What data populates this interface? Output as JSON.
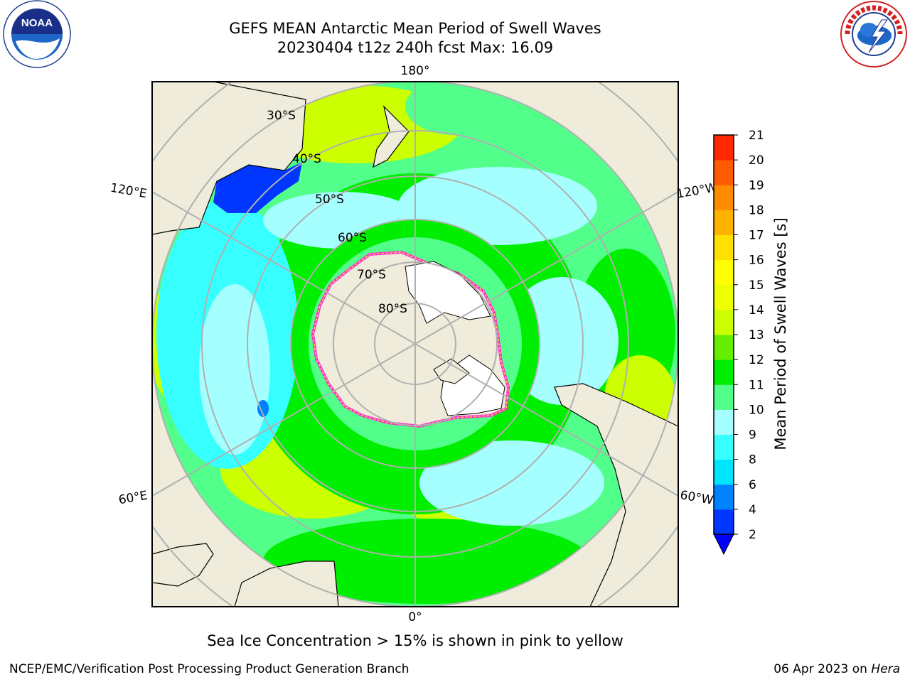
{
  "header": {
    "title_line1": "GEFS MEAN Antarctic Mean Period of Swell Waves",
    "title_line2": "20230404 t12z 240h fcst   Max: 16.09"
  },
  "logos": {
    "left": "NOAA",
    "right": "NATIONAL WEATHER SERVICE"
  },
  "chart_data": {
    "type": "heatmap",
    "projection": "south polar stereographic",
    "variable_label": "Mean Period of Swell Waves [s]",
    "colorbar": {
      "ticks": [
        2,
        4,
        6,
        8,
        9,
        10,
        11,
        12,
        13,
        14,
        15,
        16,
        17,
        18,
        19,
        20,
        21
      ],
      "colors": [
        "#0036ff",
        "#0082ff",
        "#00e5ff",
        "#38ffff",
        "#a6ffff",
        "#52ff8a",
        "#00ee00",
        "#66ee00",
        "#ccff00",
        "#eeff00",
        "#ffff00",
        "#ffe000",
        "#ffb300",
        "#ff8c00",
        "#ff5a00",
        "#ff2800"
      ],
      "extend": "min",
      "extend_color": "#0000ff"
    },
    "max_value": 16.09,
    "longitude_labels": [
      "180°",
      "120°E",
      "120°W",
      "60°E",
      "60°W",
      "0°"
    ],
    "latitude_labels": [
      "30°S",
      "40°S",
      "50°S",
      "60°S",
      "70°S",
      "80°S"
    ],
    "sea_ice_note": "Sea Ice Concentration > 15% is shown in pink to yellow",
    "sea_ice_colors": [
      "#ff33cc",
      "#ffdd44"
    ],
    "land_color": "#efecdb",
    "ice_shelf_color": "#ffffff",
    "grid": true
  },
  "footer": {
    "left": "NCEP/EMC/Verification Post Processing Product Generation Branch",
    "right_prefix": "06 Apr 2023 on ",
    "right_host": "Hera"
  }
}
